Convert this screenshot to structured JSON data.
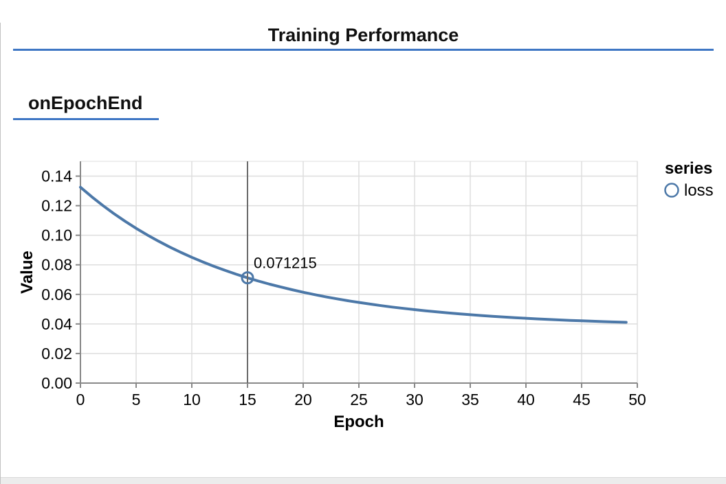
{
  "page": {
    "title": "Training Performance",
    "section_heading": "onEpochEnd",
    "accent_color": "#3e76c4"
  },
  "chart_data": {
    "type": "line",
    "xlabel": "Epoch",
    "ylabel": "Value",
    "xlim": [
      0,
      50
    ],
    "ylim": [
      0,
      0.15
    ],
    "grid": true,
    "colors": {
      "grid": "#dddddd",
      "axis": "#888888",
      "label": "#000000"
    },
    "legend": {
      "title": "series",
      "position": "right",
      "items": [
        {
          "label": "loss",
          "color": "#4c78a8",
          "symbol": "open-circle"
        }
      ]
    },
    "x_ticks": [
      {
        "v": 0,
        "label": "0"
      },
      {
        "v": 5,
        "label": "5"
      },
      {
        "v": 10,
        "label": "10"
      },
      {
        "v": 15,
        "label": "15"
      },
      {
        "v": 20,
        "label": "20"
      },
      {
        "v": 25,
        "label": "25"
      },
      {
        "v": 30,
        "label": "30"
      },
      {
        "v": 35,
        "label": "35"
      },
      {
        "v": 40,
        "label": "40"
      },
      {
        "v": 45,
        "label": "45"
      },
      {
        "v": 50,
        "label": "50"
      }
    ],
    "y_ticks": [
      {
        "v": 0.0,
        "label": "0.00"
      },
      {
        "v": 0.02,
        "label": "0.02"
      },
      {
        "v": 0.04,
        "label": "0.04"
      },
      {
        "v": 0.06,
        "label": "0.06"
      },
      {
        "v": 0.08,
        "label": "0.08"
      },
      {
        "v": 0.1,
        "label": "0.10"
      },
      {
        "v": 0.12,
        "label": "0.12"
      },
      {
        "v": 0.14,
        "label": "0.14"
      }
    ],
    "series": [
      {
        "name": "loss",
        "color": "#4c78a8",
        "x": [
          0,
          1,
          2,
          3,
          4,
          5,
          6,
          7,
          8,
          9,
          10,
          11,
          12,
          13,
          14,
          15,
          16,
          17,
          18,
          19,
          20,
          21,
          22,
          23,
          24,
          25,
          26,
          27,
          28,
          29,
          30,
          31,
          32,
          33,
          34,
          35,
          36,
          37,
          38,
          39,
          40,
          41,
          42,
          43,
          44,
          45,
          46,
          47,
          48,
          49
        ],
        "values": [
          0.1325,
          0.126137,
          0.120204,
          0.114669,
          0.109507,
          0.104693,
          0.100203,
          0.096015,
          0.09211,
          0.088467,
          0.085069,
          0.081901,
          0.078945,
          0.076188,
          0.073618,
          0.071215,
          0.068983,
          0.066896,
          0.064951,
          0.063137,
          0.061445,
          0.059866,
          0.058394,
          0.057021,
          0.055741,
          0.054546,
          0.053433,
          0.052393,
          0.051425,
          0.05052,
          0.049677,
          0.048891,
          0.048158,
          0.047475,
          0.046837,
          0.046241,
          0.045687,
          0.045169,
          0.044686,
          0.044236,
          0.043816,
          0.043425,
          0.04306,
          0.042719,
          0.042402,
          0.042105,
          0.041829,
          0.041571,
          0.041331,
          0.041107
        ]
      }
    ],
    "hover": {
      "x": 15,
      "value": 0.071215,
      "label": "0.071215",
      "rule_color": "#6b6b6b"
    }
  }
}
